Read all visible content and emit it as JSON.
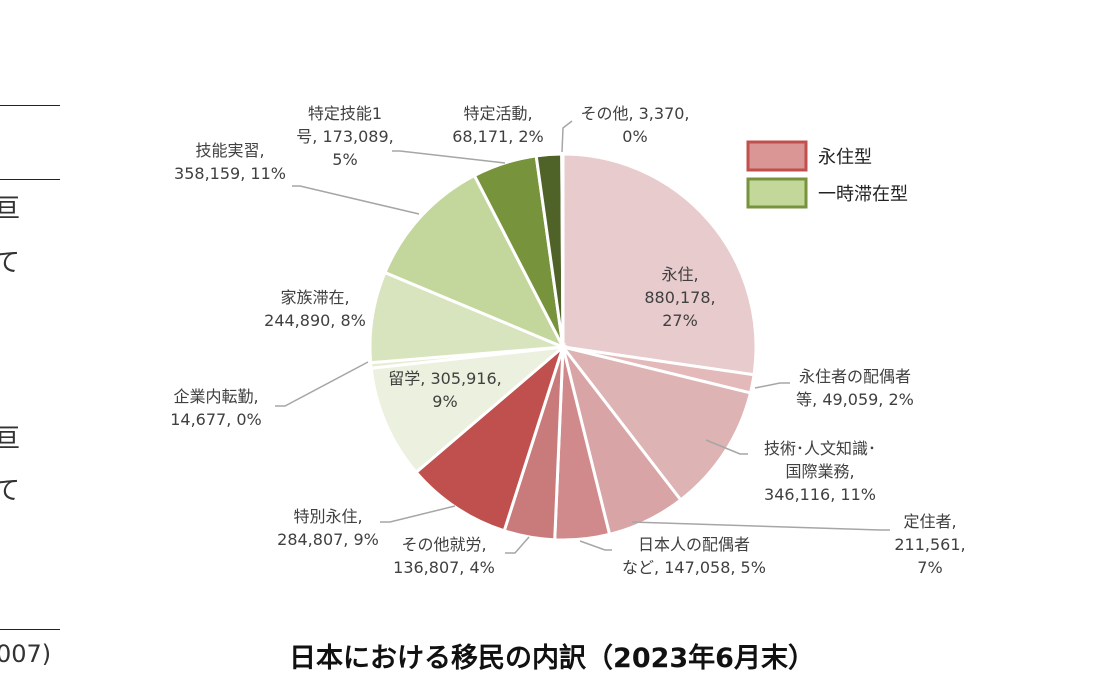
{
  "page": {
    "left_fragments": [
      "亘",
      "て",
      "亘",
      "て"
    ],
    "footnote_fragment": "007)"
  },
  "chart_data": {
    "type": "pie",
    "title": "日本における移民の内訳（2023年6月末）",
    "legend": [
      {
        "name": "永住型",
        "color": "#d99694"
      },
      {
        "name": "一時滞在型",
        "color": "#c4d79b"
      }
    ],
    "legend_position": "top-right",
    "slices": [
      {
        "label": [
          "永住,",
          "880,178,",
          "27%"
        ],
        "name": "永住",
        "value": 880178,
        "percent": "27%",
        "group": "永住型",
        "color": "#e8cbcc"
      },
      {
        "label": [
          "永住者の配偶者",
          "等, 49,059, 2%"
        ],
        "name": "永住者の配偶者等",
        "value": 49059,
        "percent": "2%",
        "group": "永住型",
        "color": "#e3b9ba"
      },
      {
        "label": [
          "技術･人文知識･",
          "国際業務,",
          "346,116, 11%"
        ],
        "name": "技術･人文知識･国際業務",
        "value": 346116,
        "percent": "11%",
        "group": "永住型",
        "color": "#ddb3b4"
      },
      {
        "label": [
          "定住者,",
          "211,561,",
          "7%"
        ],
        "name": "定住者",
        "value": 211561,
        "percent": "7%",
        "group": "永住型",
        "color": "#d9a4a5"
      },
      {
        "label": [
          "日本人の配偶者",
          "など, 147,058, 5%"
        ],
        "name": "日本人の配偶者など",
        "value": 147058,
        "percent": "5%",
        "group": "永住型",
        "color": "#d18a8c"
      },
      {
        "label": [
          "その他就労,",
          "136,807, 4%"
        ],
        "name": "その他就労",
        "value": 136807,
        "percent": "4%",
        "group": "永住型",
        "color": "#c97b7c"
      },
      {
        "label": [
          "特別永住,",
          "284,807, 9%"
        ],
        "name": "特別永住",
        "value": 284807,
        "percent": "9%",
        "group": "永住型",
        "color": "#c0504d"
      },
      {
        "label": [
          "留学, 305,916,",
          "9%"
        ],
        "name": "留学",
        "value": 305916,
        "percent": "9%",
        "group": "一時滞在型",
        "color": "#ebf1de"
      },
      {
        "label": [
          "企業内転勤,",
          "14,677, 0%"
        ],
        "name": "企業内転勤",
        "value": 14677,
        "percent": "0%",
        "group": "一時滞在型",
        "color": "#e4ecd3"
      },
      {
        "label": [
          "家族滞在,",
          "244,890, 8%"
        ],
        "name": "家族滞在",
        "value": 244890,
        "percent": "8%",
        "group": "一時滞在型",
        "color": "#d7e4bd"
      },
      {
        "label": [
          "技能実習,",
          "358,159, 11%"
        ],
        "name": "技能実習",
        "value": 358159,
        "percent": "11%",
        "group": "一時滞在型",
        "color": "#c3d69b"
      },
      {
        "label": [
          "特定技能1",
          "号, 173,089,",
          "5%"
        ],
        "name": "特定技能1号",
        "value": 173089,
        "percent": "5%",
        "group": "一時滞在型",
        "color": "#77933c"
      },
      {
        "label": [
          "特定活動,",
          "68,171, 2%"
        ],
        "name": "特定活動",
        "value": 68171,
        "percent": "2%",
        "group": "一時滞在型",
        "color": "#4f6228"
      },
      {
        "label": [
          "その他, 3,370,",
          "0%"
        ],
        "name": "その他",
        "value": 3370,
        "percent": "0%",
        "group": "一時滞在型",
        "color": "#3b4a1e"
      }
    ]
  }
}
